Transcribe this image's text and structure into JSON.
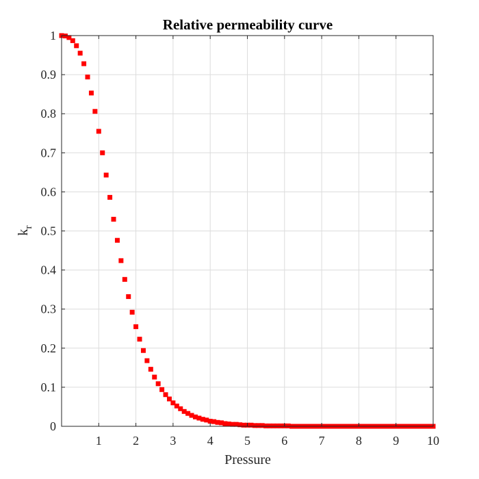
{
  "chart_data": {
    "type": "scatter",
    "title": "Relative permeability curve",
    "xlabel": "Pressure",
    "ylabel_base": "k",
    "ylabel_sub": "r",
    "xlim": [
      0,
      10
    ],
    "ylim": [
      0,
      1
    ],
    "xticks": [
      1,
      2,
      3,
      4,
      5,
      6,
      7,
      8,
      9,
      10
    ],
    "xtick_labels": [
      "1",
      "2",
      "3",
      "4",
      "5",
      "6",
      "7",
      "8",
      "9",
      "10"
    ],
    "yticks": [
      0,
      0.1,
      0.2,
      0.3,
      0.4,
      0.5,
      0.6,
      0.7,
      0.8,
      0.9,
      1
    ],
    "ytick_labels": [
      "0",
      "0.1",
      "0.2",
      "0.3",
      "0.4",
      "0.5",
      "0.6",
      "0.7",
      "0.8",
      "0.9",
      "1"
    ],
    "grid": true,
    "marker": "square",
    "series": [
      {
        "color": "#ff0000",
        "x": [
          0.0,
          0.1,
          0.2,
          0.3,
          0.4,
          0.5,
          0.6,
          0.7,
          0.8,
          0.9,
          1.0,
          1.1,
          1.2,
          1.3,
          1.4,
          1.5,
          1.6,
          1.7,
          1.8,
          1.9,
          2.0,
          2.1,
          2.2,
          2.3,
          2.4,
          2.5,
          2.6,
          2.7,
          2.8,
          2.9,
          3.0,
          3.1,
          3.2,
          3.3,
          3.4,
          3.5,
          3.6,
          3.7,
          3.8,
          3.9,
          4.0,
          4.1,
          4.2,
          4.3,
          4.4,
          4.5,
          4.6,
          4.7,
          4.8,
          4.9,
          5.0,
          5.1,
          5.2,
          5.3,
          5.4,
          5.5,
          5.6,
          5.7,
          5.8,
          5.9,
          6.0,
          6.1,
          6.2,
          6.3,
          6.4,
          6.5,
          6.6,
          6.7,
          6.8,
          6.9,
          7.0,
          7.1,
          7.2,
          7.3,
          7.4,
          7.5,
          7.6,
          7.7,
          7.8,
          7.9,
          8.0,
          8.1,
          8.2,
          8.3,
          8.4,
          8.5,
          8.6,
          8.7,
          8.8,
          8.9,
          9.0,
          9.1,
          9.2,
          9.3,
          9.4,
          9.5,
          9.6,
          9.7,
          9.8,
          9.9,
          10.0
        ],
        "y": [
          1.0,
          0.999,
          0.995,
          0.987,
          0.974,
          0.955,
          0.928,
          0.894,
          0.853,
          0.806,
          0.755,
          0.7,
          0.643,
          0.586,
          0.53,
          0.476,
          0.424,
          0.376,
          0.332,
          0.292,
          0.255,
          0.223,
          0.194,
          0.168,
          0.146,
          0.126,
          0.109,
          0.094,
          0.081,
          0.07,
          0.06,
          0.052,
          0.045,
          0.038,
          0.033,
          0.028,
          0.024,
          0.021,
          0.018,
          0.016,
          0.013,
          0.012,
          0.01,
          0.009,
          0.007,
          0.006,
          0.005,
          0.005,
          0.004,
          0.003,
          0.003,
          0.003,
          0.002,
          0.002,
          0.002,
          0.001,
          0.001,
          0.001,
          0.001,
          0.001,
          0.001,
          0.001,
          0.0,
          0.0,
          0.0,
          0.0,
          0.0,
          0.0,
          0.0,
          0.0,
          0.0,
          0.0,
          0.0,
          0.0,
          0.0,
          0.0,
          0.0,
          0.0,
          0.0,
          0.0,
          0.0,
          0.0,
          0.0,
          0.0,
          0.0,
          0.0,
          0.0,
          0.0,
          0.0,
          0.0,
          0.0,
          0.0,
          0.0,
          0.0,
          0.0,
          0.0,
          0.0,
          0.0,
          0.0,
          0.0,
          0.0
        ]
      }
    ]
  }
}
